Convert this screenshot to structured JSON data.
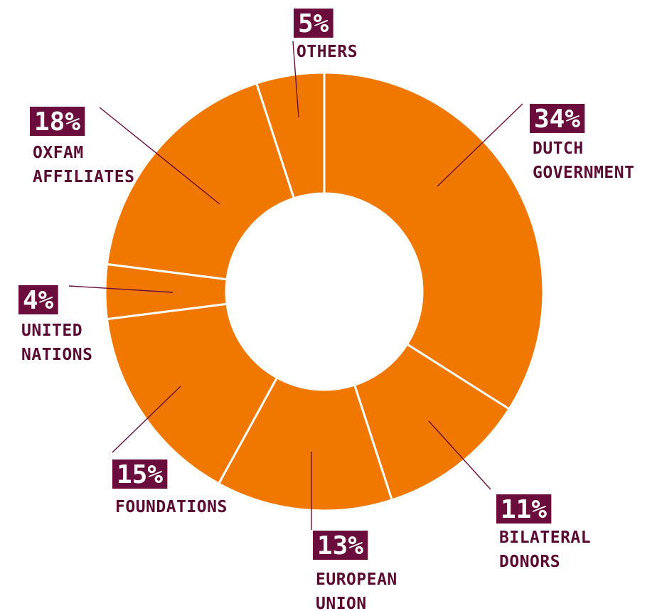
{
  "chart_data": {
    "type": "pie",
    "variant": "donut",
    "color": "#f07800",
    "label_box_color": "#6b0d3c",
    "label_text_color": "#5a0a32",
    "slices": [
      {
        "pct_label": "34%",
        "value": 34,
        "name_lines": [
          "DUTCH",
          "GOVERNMENT"
        ]
      },
      {
        "pct_label": "11%",
        "value": 11,
        "name_lines": [
          "BILATERAL",
          "DONORS"
        ]
      },
      {
        "pct_label": "13%",
        "value": 13,
        "name_lines": [
          "EUROPEAN",
          "UNION"
        ]
      },
      {
        "pct_label": "15%",
        "value": 15,
        "name_lines": [
          "FOUNDATIONS"
        ]
      },
      {
        "pct_label": "4%",
        "value": 4,
        "name_lines": [
          "UNITED",
          "NATIONS"
        ]
      },
      {
        "pct_label": "18%",
        "value": 18,
        "name_lines": [
          "OXFAM",
          "AFFILIATES"
        ]
      },
      {
        "pct_label": "5%",
        "value": 5,
        "name_lines": [
          "OTHERS"
        ]
      }
    ]
  }
}
